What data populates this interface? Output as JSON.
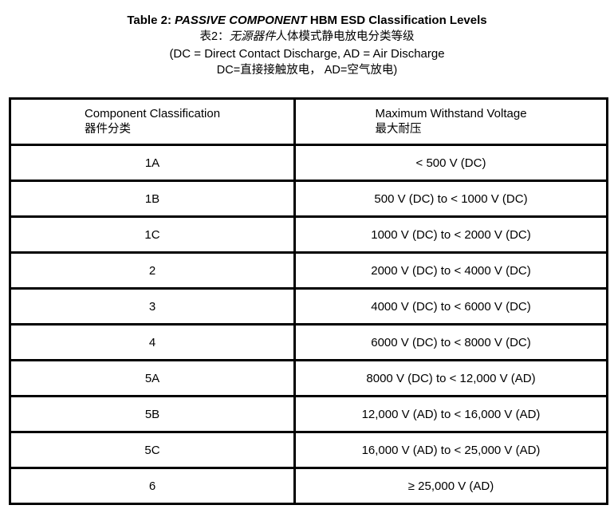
{
  "page": {
    "background_color": "#ffffff",
    "text_color": "#000000",
    "table_border_color": "#000000"
  },
  "title": {
    "line1_prefix": "Table 2: ",
    "line1_emphasis": "PASSIVE COMPONENT",
    "line1_suffix": " HBM ESD Classification Levels",
    "line2_prefix": "表2：",
    "line2_emphasis": "无源器件",
    "line2_suffix": "人体模式静电放电分类等级",
    "line3": "(DC = Direct Contact Discharge, AD = Air Discharge",
    "line4": "DC=直接接触放电， AD=空气放电)"
  },
  "table": {
    "columns": [
      {
        "header_en": "Component Classification",
        "header_zh": "器件分类"
      },
      {
        "header_en": "Maximum Withstand Voltage",
        "header_zh": "最大耐压"
      }
    ],
    "rows": [
      {
        "classification": "1A",
        "max_withstand_voltage": "< 500 V (DC)"
      },
      {
        "classification": "1B",
        "max_withstand_voltage": "500 V (DC) to < 1000 V (DC)"
      },
      {
        "classification": "1C",
        "max_withstand_voltage": "1000 V (DC) to < 2000 V (DC)"
      },
      {
        "classification": "2",
        "max_withstand_voltage": "2000 V (DC) to < 4000 V (DC)"
      },
      {
        "classification": "3",
        "max_withstand_voltage": "4000 V (DC) to < 6000 V (DC)"
      },
      {
        "classification": "4",
        "max_withstand_voltage": "6000 V (DC) to < 8000 V (DC)"
      },
      {
        "classification": "5A",
        "max_withstand_voltage": "8000 V (DC) to < 12,000 V (AD)"
      },
      {
        "classification": "5B",
        "max_withstand_voltage": "12,000 V (AD) to < 16,000 V (AD)"
      },
      {
        "classification": "5C",
        "max_withstand_voltage": "16,000 V (AD) to < 25,000 V (AD)"
      },
      {
        "classification": "6",
        "max_withstand_voltage": "≥ 25,000 V (AD)"
      }
    ]
  }
}
